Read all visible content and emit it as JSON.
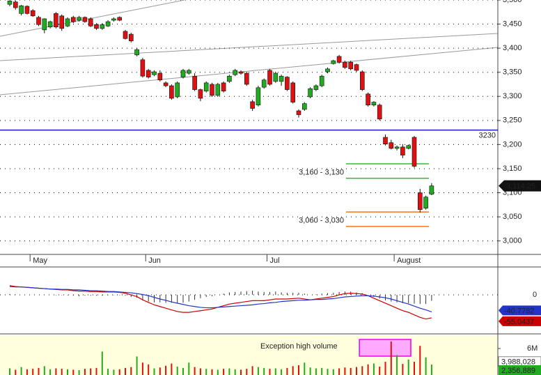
{
  "chart_data": [
    {
      "type": "candlestick",
      "categories": [
        null,
        null,
        null,
        null,
        "May",
        null,
        null,
        null,
        null,
        null,
        null,
        null,
        null,
        null,
        null,
        null,
        null,
        null,
        null,
        null,
        null,
        null,
        null,
        null,
        "Jun",
        null,
        null,
        null,
        null,
        null,
        null,
        null,
        null,
        null,
        null,
        null,
        null,
        null,
        null,
        null,
        null,
        null,
        null,
        null,
        null,
        "Jul",
        null,
        null,
        null,
        null,
        null,
        null,
        null,
        null,
        null,
        null,
        null,
        null,
        null,
        null,
        null,
        null,
        null,
        null,
        null,
        null,
        null,
        "August",
        null,
        null,
        null,
        null,
        null,
        null
      ],
      "open": [
        3491,
        3496,
        3472,
        3487,
        3478,
        3464,
        3438,
        3444,
        3472,
        3467,
        3446,
        3464,
        3458,
        3464,
        3461,
        3449,
        3441,
        3446,
        3458,
        3464,
        3435,
        3429,
        3386,
        3376,
        3354,
        3345,
        3348,
        3328,
        3322,
        3299,
        3340,
        3348,
        3342,
        3314,
        3311,
        3325,
        3302,
        3328,
        3331,
        3345,
        3351,
        3348,
        3289,
        3282,
        3319,
        3354,
        3331,
        3331,
        3340,
        3328,
        3270,
        3273,
        3299,
        3314,
        3322,
        3351,
        3368,
        3383,
        3371,
        3371,
        3366,
        3351,
        3305,
        3282,
        3282,
        3215,
        3204,
        3192,
        3195,
        3192,
        3215,
        3100,
        3068,
        3097
      ],
      "high": [
        3499,
        3499,
        3490,
        3489,
        3481,
        3467,
        3462,
        3457,
        3475,
        3470,
        3464,
        3467,
        3467,
        3466,
        3464,
        3452,
        3452,
        3458,
        3464,
        3466,
        3438,
        3432,
        3401,
        3380,
        3357,
        3354,
        3354,
        3331,
        3325,
        3331,
        3357,
        3357,
        3348,
        3316,
        3331,
        3328,
        3328,
        3331,
        3345,
        3357,
        3354,
        3351,
        3293,
        3322,
        3337,
        3357,
        3351,
        3345,
        3342,
        3331,
        3273,
        3288,
        3319,
        3325,
        3345,
        3360,
        3376,
        3386,
        3374,
        3374,
        3368,
        3354,
        3308,
        3290,
        3285,
        3221,
        3210,
        3198,
        3201,
        3200,
        3218,
        3108,
        3094,
        3120
      ],
      "low": [
        3487,
        3480,
        3468,
        3470,
        3465,
        3446,
        3431,
        3441,
        3441,
        3436,
        3444,
        3452,
        3455,
        3453,
        3444,
        3438,
        3438,
        3444,
        3455,
        3456,
        3418,
        3412,
        3383,
        3339,
        3337,
        3342,
        3331,
        3319,
        3293,
        3296,
        3337,
        3345,
        3311,
        3290,
        3308,
        3299,
        3299,
        3308,
        3328,
        3342,
        3345,
        3322,
        3270,
        3279,
        3316,
        3322,
        3328,
        3322,
        3311,
        3285,
        3256,
        3270,
        3296,
        3311,
        3319,
        3348,
        3366,
        3368,
        3357,
        3354,
        3351,
        3311,
        3279,
        3279,
        3250,
        3198,
        3190,
        3188,
        3172,
        3190,
        3152,
        3059,
        3065,
        3095
      ],
      "close": [
        3498,
        3484,
        3488,
        3472,
        3467,
        3449,
        3461,
        3455,
        3444,
        3441,
        3461,
        3455,
        3464,
        3455,
        3446,
        3441,
        3449,
        3455,
        3461,
        3458,
        3420,
        3415,
        3397,
        3342,
        3340,
        3351,
        3334,
        3322,
        3296,
        3328,
        3354,
        3354,
        3314,
        3296,
        3328,
        3302,
        3325,
        3311,
        3342,
        3354,
        3348,
        3325,
        3275,
        3318,
        3334,
        3325,
        3348,
        3342,
        3314,
        3288,
        3262,
        3285,
        3316,
        3322,
        3342,
        3357,
        3374,
        3371,
        3360,
        3357,
        3354,
        3314,
        3282,
        3288,
        3253,
        3201,
        3192,
        3195,
        3178,
        3198,
        3155,
        3065,
        3091,
        3114.25
      ],
      "last_label": "3,114.25",
      "up_color": "#22aa22",
      "down_color": "#dd1111",
      "ylim": [
        2972,
        3500
      ],
      "yticks": [
        {
          "value": 3000,
          "label": "3,000"
        },
        {
          "value": 3050,
          "label": "3,050"
        },
        {
          "value": 3100,
          "label": "3,100"
        },
        {
          "value": 3150,
          "label": "3,150"
        },
        {
          "value": 3200,
          "label": "3,200"
        },
        {
          "value": 3250,
          "label": "3,250"
        },
        {
          "value": 3300,
          "label": "3,300"
        },
        {
          "value": 3350,
          "label": "3,350"
        },
        {
          "value": 3400,
          "label": "3,400"
        },
        {
          "value": 3450,
          "label": "3,450"
        },
        {
          "value": 3500,
          "label": "3,500"
        }
      ],
      "grid": true,
      "levels": [
        {
          "value": 3230,
          "color": "#1a1acc"
        }
      ],
      "zones": [
        {
          "values": [
            3160,
            3130
          ],
          "label": "3,160 - 3,130",
          "color": "#33bb33"
        },
        {
          "values": [
            3060,
            3030
          ],
          "label": "3,060 - 3,030",
          "color": "#ee7722"
        }
      ]
    },
    {
      "type": "line",
      "series": [
        {
          "color": "#cc0000",
          "values": [
            22,
            20,
            19,
            18,
            17,
            16,
            15,
            14,
            13,
            12,
            12,
            10,
            9,
            9,
            8,
            8,
            7,
            7,
            7,
            6,
            4,
            0,
            -4,
            -12,
            -18,
            -24,
            -28,
            -32,
            -36,
            -40,
            -42,
            -42,
            -40,
            -38,
            -36,
            -34,
            -30,
            -26,
            -22,
            -20,
            -18,
            -16,
            -14,
            -14,
            -14,
            -12,
            -10,
            -10,
            -10,
            -9,
            -8,
            -10,
            -12,
            -10,
            -8,
            -6,
            -4,
            0,
            3,
            4,
            3,
            2,
            -2,
            -8,
            -14,
            -20,
            -26,
            -32,
            -38,
            -42,
            -48,
            -54,
            -58,
            -55.0437
          ]
        },
        {
          "color": "#2233cc",
          "values": [
            20,
            19,
            19,
            18,
            17,
            16,
            15,
            14,
            14,
            13,
            13,
            12,
            12,
            11,
            10,
            10,
            9,
            8,
            8,
            7,
            6,
            5,
            3,
            1,
            -2,
            -6,
            -10,
            -13,
            -17,
            -20,
            -23,
            -26,
            -28,
            -30,
            -31,
            -31,
            -30,
            -29,
            -28,
            -27,
            -26,
            -25,
            -24,
            -22,
            -21,
            -19,
            -18,
            -16,
            -15,
            -14,
            -13,
            -13,
            -12,
            -11,
            -11,
            -10,
            -9,
            -7,
            -5,
            -4,
            -3,
            -2,
            -2,
            -3,
            -5,
            -7,
            -10,
            -14,
            -18,
            -22,
            -27,
            -32,
            -36,
            -40.7782
          ]
        }
      ],
      "ylim": [
        -92,
        67
      ],
      "yticks": [
        0
      ],
      "grid": true
    },
    {
      "type": "bar",
      "values": [
        1500000,
        1200000,
        1800000,
        1300000,
        1400000,
        1600000,
        2000000,
        1300000,
        1500000,
        1400000,
        1300000,
        1200000,
        1100000,
        1400000,
        1500000,
        1600000,
        5300000,
        1400000,
        1200000,
        1300000,
        1600000,
        1800000,
        4200000,
        2800000,
        2400000,
        1500000,
        1700000,
        2100000,
        2600000,
        1900000,
        1600000,
        2800000,
        1800000,
        1500000,
        1400000,
        1300000,
        1200000,
        1400000,
        1500000,
        1300000,
        1200000,
        1400000,
        2000000,
        1800000,
        1600000,
        1400000,
        1500000,
        1300000,
        1600000,
        2000000,
        2200000,
        2800000,
        1700000,
        1500000,
        1600000,
        1400000,
        1300000,
        1500000,
        1700000,
        1600000,
        1800000,
        2000000,
        2400000,
        2600000,
        1900000,
        3000000,
        7600000,
        4500000,
        2500000,
        3500000,
        3000000,
        6600000,
        4000000,
        2356889
      ],
      "value_labels_last": "2,356,889",
      "ylim": [
        0,
        9000000
      ],
      "yticks": [
        {
          "value": 6000000,
          "label": "6M"
        }
      ],
      "markers": [
        {
          "value": 3988028,
          "label": "3,988,028"
        }
      ],
      "annotation": "Exception high volume"
    }
  ]
}
